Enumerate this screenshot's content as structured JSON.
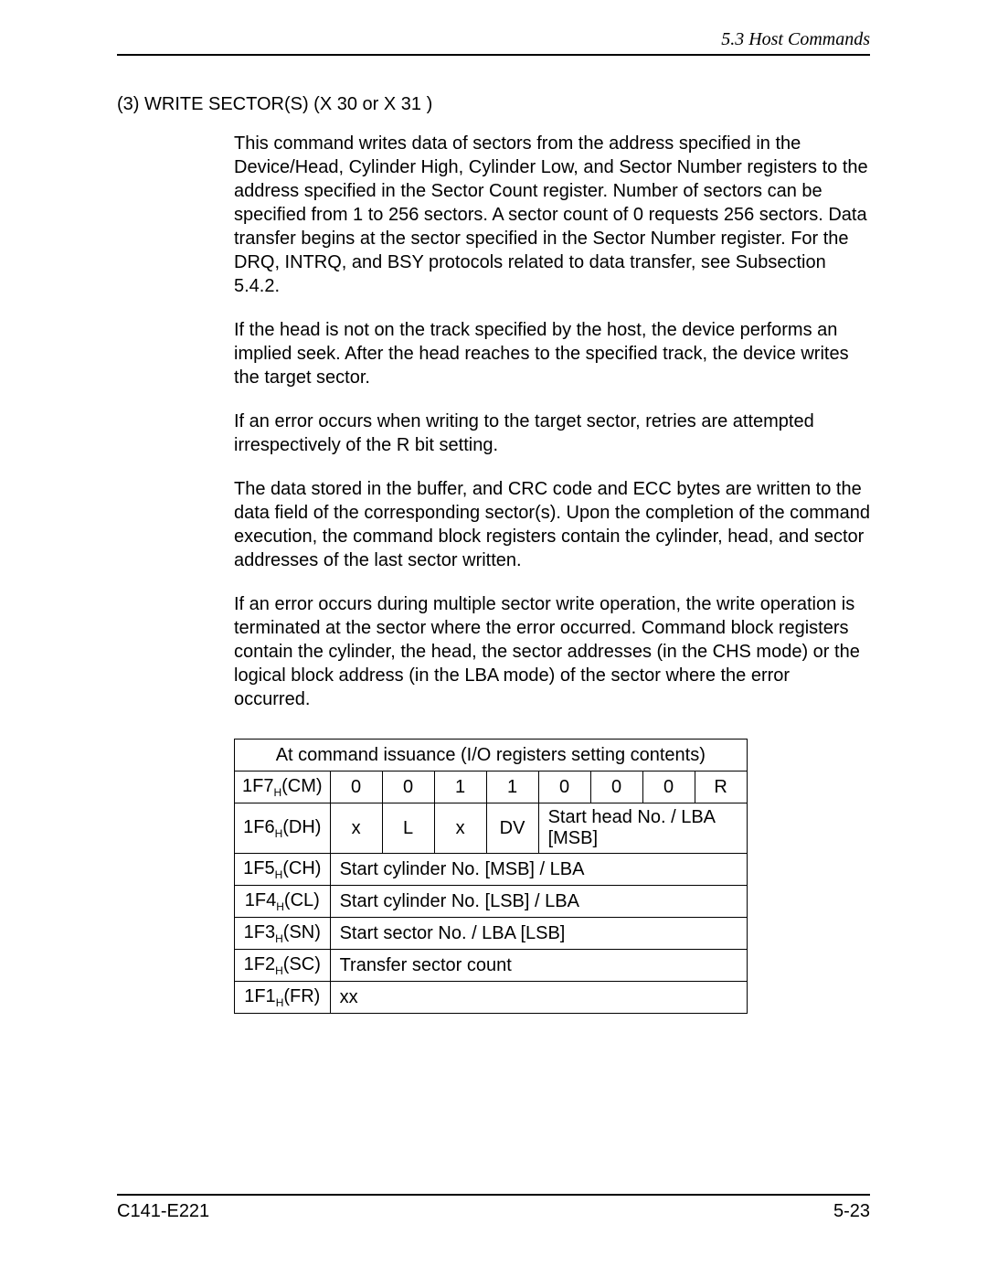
{
  "header": {
    "section": "5.3  Host Commands"
  },
  "title": "(3)  WRITE SECTOR(S)  (X 30  or X 31 )",
  "paragraphs": {
    "p1": "This command writes data of sectors from the address specified in the Device/Head, Cylinder High, Cylinder Low, and Sector Number registers to the address specified in the Sector Count register.  Number of sectors can be specified from 1 to 256 sectors.  A sector count of 0 requests 256 sectors.  Data transfer begins at the sector specified in the Sector Number register.  For the DRQ, INTRQ, and BSY protocols related to data transfer, see Subsection 5.4.2.",
    "p2": "If the head is not on the track specified by the host, the device performs an implied seek. After the head reaches to the specified track, the device writes the target sector.",
    "p3": "If an error occurs when writing to the target sector, retries are attempted irrespectively of the R bit setting.",
    "p4": "The data stored in the buffer, and CRC code and ECC bytes are written to the data field of the corresponding sector(s). Upon the completion of the command execution, the command block registers contain the cylinder, head, and sector addresses of the last sector written.",
    "p5": "If an error occurs during multiple sector write operation, the write operation is terminated at the sector where the error occurred.  Command block registers contain the cylinder, the head, the sector addresses (in the CHS mode) or the logical block address (in the LBA mode) of the sector where the error occurred."
  },
  "table": {
    "caption": "At command issuance (I/O registers setting contents)",
    "rows": {
      "r1": {
        "label_a": "1F7",
        "label_b": "(CM)",
        "c1": "0",
        "c2": "0",
        "c3": "1",
        "c4": "1",
        "c5": "0",
        "c6": "0",
        "c7": "0",
        "c8": "R"
      },
      "r2": {
        "label_a": "1F6",
        "label_b": "(DH)",
        "c1": "x",
        "c2": "L",
        "c3": "x",
        "c4": "DV",
        "rest": "Start head No. / LBA [MSB]"
      },
      "r3": {
        "label_a": "1F5",
        "label_b": "(CH)",
        "full": "Start cylinder No. [MSB] / LBA"
      },
      "r4": {
        "label_a": "1F4",
        "label_b": "(CL)",
        "full": "Start cylinder No. [LSB] / LBA"
      },
      "r5": {
        "label_a": "1F3",
        "label_b": "(SN)",
        "full": "Start sector No. / LBA [LSB]"
      },
      "r6": {
        "label_a": "1F2",
        "label_b": "(SC)",
        "full": "Transfer sector count"
      },
      "r7": {
        "label_a": "1F1",
        "label_b": "(FR)",
        "full": "xx"
      }
    }
  },
  "footer": {
    "left": "C141-E221",
    "right": "5-23"
  }
}
